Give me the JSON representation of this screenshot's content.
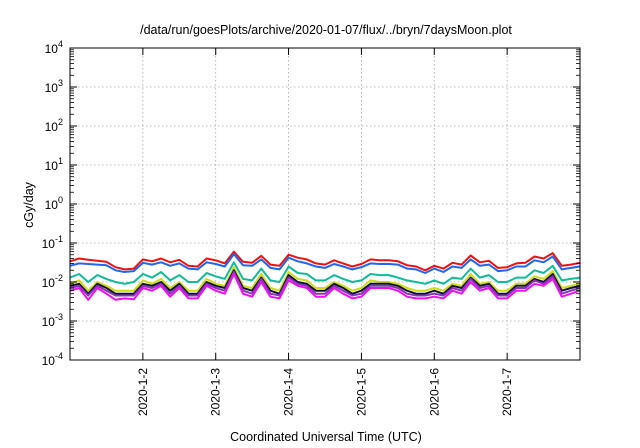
{
  "chart_data": {
    "type": "line",
    "title": "/data/run/goesPlots/archive/2020-01-07/flux/../bryn/7daysMoon.plot",
    "xlabel": "Coordinated Universal Time (UTC)",
    "ylabel": "cGy/day",
    "yscale": "log",
    "ylim": [
      0.0001,
      10000
    ],
    "xlim": [
      "2020-01-01T00:00",
      "2020-01-08T00:00"
    ],
    "grid": true,
    "yticks": [
      {
        "value": 0.0001,
        "base": "10",
        "exp": "-4"
      },
      {
        "value": 0.001,
        "base": "10",
        "exp": "-3"
      },
      {
        "value": 0.01,
        "base": "10",
        "exp": "-2"
      },
      {
        "value": 0.1,
        "base": "10",
        "exp": "-1"
      },
      {
        "value": 1,
        "base": "10",
        "exp": "0"
      },
      {
        "value": 10,
        "base": "10",
        "exp": "1"
      },
      {
        "value": 100,
        "base": "10",
        "exp": "2"
      },
      {
        "value": 1000,
        "base": "10",
        "exp": "3"
      },
      {
        "value": 10000,
        "base": "10",
        "exp": "4"
      }
    ],
    "xticks": [
      {
        "value": "2020-01-02T00:00",
        "label": "2020-1-2"
      },
      {
        "value": "2020-01-03T00:00",
        "label": "2020-1-3"
      },
      {
        "value": "2020-01-04T00:00",
        "label": "2020-1-4"
      },
      {
        "value": "2020-01-05T00:00",
        "label": "2020-1-5"
      },
      {
        "value": "2020-01-06T00:00",
        "label": "2020-1-6"
      },
      {
        "value": "2020-01-07T00:00",
        "label": "2020-1-7"
      }
    ],
    "x": [
      "2020-01-01T00:00",
      "2020-01-01T03:00",
      "2020-01-01T06:00",
      "2020-01-01T09:00",
      "2020-01-01T12:00",
      "2020-01-01T15:00",
      "2020-01-01T18:00",
      "2020-01-01T21:00",
      "2020-01-02T00:00",
      "2020-01-02T03:00",
      "2020-01-02T06:00",
      "2020-01-02T09:00",
      "2020-01-02T12:00",
      "2020-01-02T15:00",
      "2020-01-02T18:00",
      "2020-01-02T21:00",
      "2020-01-03T00:00",
      "2020-01-03T03:00",
      "2020-01-03T06:00",
      "2020-01-03T09:00",
      "2020-01-03T12:00",
      "2020-01-03T15:00",
      "2020-01-03T18:00",
      "2020-01-03T21:00",
      "2020-01-04T00:00",
      "2020-01-04T03:00",
      "2020-01-04T06:00",
      "2020-01-04T09:00",
      "2020-01-04T12:00",
      "2020-01-04T15:00",
      "2020-01-04T18:00",
      "2020-01-04T21:00",
      "2020-01-05T00:00",
      "2020-01-05T03:00",
      "2020-01-05T06:00",
      "2020-01-05T09:00",
      "2020-01-05T12:00",
      "2020-01-05T15:00",
      "2020-01-05T18:00",
      "2020-01-05T21:00",
      "2020-01-06T00:00",
      "2020-01-06T03:00",
      "2020-01-06T06:00",
      "2020-01-06T09:00",
      "2020-01-06T12:00",
      "2020-01-06T15:00",
      "2020-01-06T18:00",
      "2020-01-06T21:00",
      "2020-01-07T00:00",
      "2020-01-07T03:00",
      "2020-01-07T06:00",
      "2020-01-07T09:00",
      "2020-01-07T12:00",
      "2020-01-07T15:00",
      "2020-01-07T18:00",
      "2020-01-07T21:00",
      "2020-01-08T00:00"
    ],
    "series": [
      {
        "color": "#ee1111",
        "values": [
          0.034,
          0.04,
          0.037,
          0.035,
          0.033,
          0.024,
          0.021,
          0.022,
          0.038,
          0.034,
          0.04,
          0.032,
          0.037,
          0.026,
          0.025,
          0.04,
          0.036,
          0.03,
          0.06,
          0.033,
          0.031,
          0.047,
          0.028,
          0.026,
          0.05,
          0.042,
          0.038,
          0.03,
          0.028,
          0.036,
          0.03,
          0.025,
          0.029,
          0.038,
          0.036,
          0.036,
          0.034,
          0.027,
          0.025,
          0.02,
          0.026,
          0.022,
          0.031,
          0.028,
          0.048,
          0.032,
          0.035,
          0.023,
          0.024,
          0.03,
          0.031,
          0.045,
          0.04,
          0.055,
          0.026,
          0.028,
          0.031
        ]
      },
      {
        "color": "#2266ee",
        "values": [
          0.026,
          0.03,
          0.029,
          0.028,
          0.027,
          0.02,
          0.018,
          0.019,
          0.031,
          0.028,
          0.032,
          0.026,
          0.03,
          0.022,
          0.021,
          0.032,
          0.029,
          0.025,
          0.052,
          0.027,
          0.026,
          0.038,
          0.023,
          0.021,
          0.042,
          0.034,
          0.03,
          0.025,
          0.023,
          0.029,
          0.025,
          0.021,
          0.024,
          0.03,
          0.029,
          0.029,
          0.028,
          0.022,
          0.021,
          0.017,
          0.022,
          0.018,
          0.025,
          0.023,
          0.038,
          0.026,
          0.028,
          0.019,
          0.02,
          0.025,
          0.025,
          0.036,
          0.032,
          0.045,
          0.021,
          0.023,
          0.025
        ]
      },
      {
        "color": "#11bb99",
        "values": [
          0.013,
          0.016,
          0.01,
          0.015,
          0.012,
          0.01,
          0.009,
          0.01,
          0.016,
          0.013,
          0.018,
          0.011,
          0.015,
          0.01,
          0.01,
          0.017,
          0.014,
          0.012,
          0.032,
          0.012,
          0.011,
          0.022,
          0.011,
          0.01,
          0.025,
          0.017,
          0.016,
          0.011,
          0.011,
          0.015,
          0.012,
          0.01,
          0.011,
          0.016,
          0.015,
          0.015,
          0.013,
          0.011,
          0.01,
          0.009,
          0.011,
          0.009,
          0.013,
          0.012,
          0.022,
          0.013,
          0.015,
          0.01,
          0.01,
          0.013,
          0.013,
          0.02,
          0.017,
          0.026,
          0.011,
          0.012,
          0.013
        ]
      },
      {
        "color": "#ccdd11",
        "values": [
          0.009,
          0.011,
          0.006,
          0.01,
          0.008,
          0.006,
          0.006,
          0.006,
          0.011,
          0.009,
          0.012,
          0.007,
          0.01,
          0.006,
          0.006,
          0.012,
          0.009,
          0.008,
          0.024,
          0.008,
          0.007,
          0.016,
          0.007,
          0.006,
          0.018,
          0.012,
          0.011,
          0.007,
          0.007,
          0.01,
          0.008,
          0.006,
          0.007,
          0.011,
          0.01,
          0.01,
          0.009,
          0.007,
          0.006,
          0.006,
          0.007,
          0.006,
          0.009,
          0.008,
          0.016,
          0.009,
          0.01,
          0.006,
          0.006,
          0.009,
          0.009,
          0.014,
          0.012,
          0.019,
          0.007,
          0.008,
          0.009
        ]
      },
      {
        "color": "#111133",
        "values": [
          0.008,
          0.009,
          0.005,
          0.009,
          0.007,
          0.005,
          0.005,
          0.005,
          0.009,
          0.008,
          0.01,
          0.006,
          0.009,
          0.005,
          0.005,
          0.01,
          0.008,
          0.007,
          0.02,
          0.007,
          0.006,
          0.013,
          0.006,
          0.005,
          0.015,
          0.01,
          0.009,
          0.006,
          0.006,
          0.009,
          0.007,
          0.005,
          0.006,
          0.009,
          0.009,
          0.009,
          0.008,
          0.006,
          0.005,
          0.005,
          0.006,
          0.005,
          0.008,
          0.007,
          0.013,
          0.008,
          0.009,
          0.005,
          0.005,
          0.008,
          0.008,
          0.012,
          0.01,
          0.016,
          0.006,
          0.007,
          0.008
        ]
      },
      {
        "color": "#8833bb",
        "values": [
          0.007,
          0.008,
          0.0045,
          0.008,
          0.006,
          0.0045,
          0.0045,
          0.0045,
          0.008,
          0.007,
          0.009,
          0.005,
          0.008,
          0.0045,
          0.0045,
          0.009,
          0.007,
          0.006,
          0.018,
          0.006,
          0.005,
          0.012,
          0.005,
          0.0045,
          0.013,
          0.009,
          0.008,
          0.005,
          0.005,
          0.008,
          0.006,
          0.0045,
          0.005,
          0.008,
          0.008,
          0.008,
          0.007,
          0.005,
          0.0045,
          0.0045,
          0.005,
          0.0045,
          0.007,
          0.006,
          0.012,
          0.007,
          0.008,
          0.0045,
          0.0045,
          0.007,
          0.007,
          0.011,
          0.009,
          0.014,
          0.005,
          0.006,
          0.007
        ]
      },
      {
        "color": "#ee11ee",
        "values": [
          0.006,
          0.007,
          0.0035,
          0.007,
          0.005,
          0.0035,
          0.0038,
          0.0036,
          0.007,
          0.006,
          0.008,
          0.0042,
          0.007,
          0.0038,
          0.0038,
          0.008,
          0.006,
          0.005,
          0.016,
          0.005,
          0.0042,
          0.01,
          0.0042,
          0.0038,
          0.011,
          0.008,
          0.007,
          0.0042,
          0.0042,
          0.007,
          0.005,
          0.0038,
          0.0042,
          0.007,
          0.007,
          0.007,
          0.006,
          0.0042,
          0.0038,
          0.0038,
          0.0042,
          0.0038,
          0.006,
          0.005,
          0.01,
          0.006,
          0.007,
          0.0038,
          0.0038,
          0.006,
          0.006,
          0.009,
          0.008,
          0.012,
          0.0042,
          0.005,
          0.006
        ]
      }
    ]
  }
}
